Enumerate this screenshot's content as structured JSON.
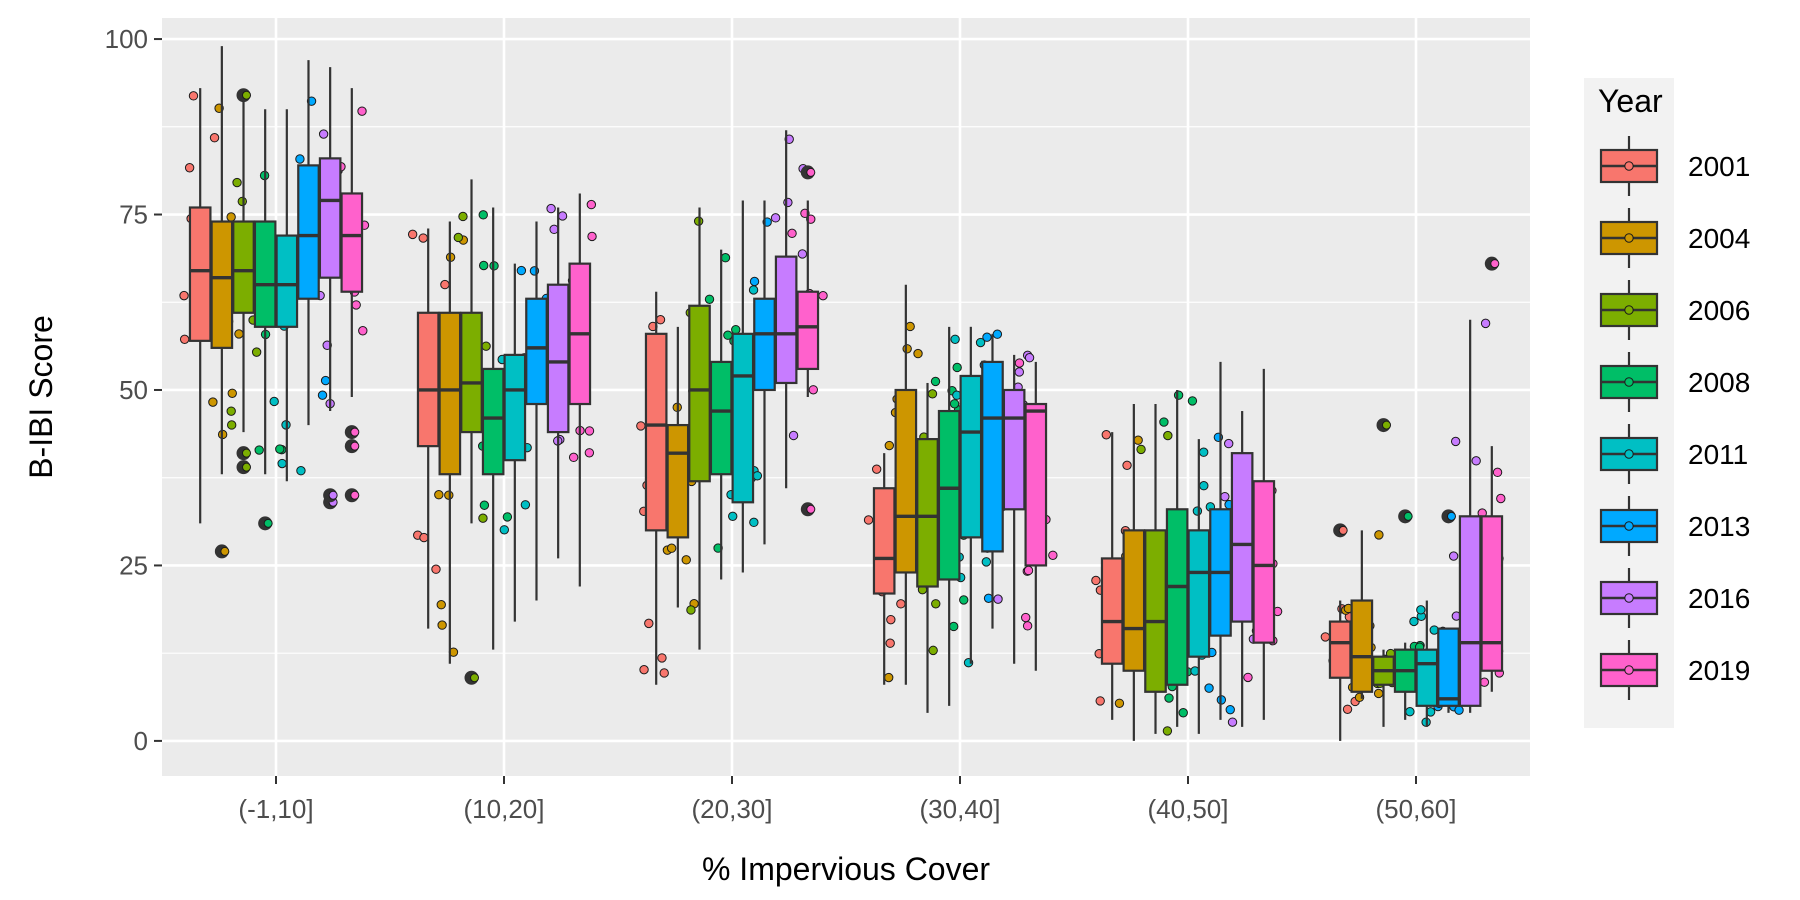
{
  "chart_data": {
    "type": "boxplot",
    "title": "",
    "xlabel": "% Impervious Cover",
    "ylabel": "B-IBI Score",
    "ylim": [
      -5,
      103
    ],
    "yticks": [
      0,
      25,
      50,
      75,
      100
    ],
    "grid": true,
    "legend": {
      "title": "Year",
      "position": "right"
    },
    "categories": [
      "(-1,10]",
      "(10,20]",
      "(20,30]",
      "(30,40]",
      "(40,50]",
      "(50,60]"
    ],
    "colors": {
      "2001": "#F8766D",
      "2004": "#CD9600",
      "2006": "#7CAE00",
      "2008": "#00BE67",
      "2011": "#00BFC4",
      "2013": "#00A9FF",
      "2016": "#C77CFF",
      "2019": "#FF61CC"
    },
    "series": [
      {
        "name": "2001",
        "boxes": [
          {
            "lo": 31,
            "q1": 57,
            "med": 67,
            "q3": 76,
            "hi": 93
          },
          {
            "lo": 16,
            "q1": 42,
            "med": 50,
            "q3": 61,
            "hi": 73
          },
          {
            "lo": 8,
            "q1": 30,
            "med": 45,
            "q3": 58,
            "hi": 64
          },
          {
            "lo": 8,
            "q1": 21,
            "med": 26,
            "q3": 36,
            "hi": 41
          },
          {
            "lo": 3,
            "q1": 11,
            "med": 17,
            "q3": 26,
            "hi": 44
          },
          {
            "lo": 0,
            "q1": 9,
            "med": 14,
            "q3": 17,
            "hi": 20
          }
        ]
      },
      {
        "name": "2004",
        "boxes": [
          {
            "lo": 38,
            "q1": 56,
            "med": 66,
            "q3": 74,
            "hi": 99
          },
          {
            "lo": 11,
            "q1": 38,
            "med": 50,
            "q3": 61,
            "hi": 74
          },
          {
            "lo": 19,
            "q1": 29,
            "med": 41,
            "q3": 45,
            "hi": 59
          },
          {
            "lo": 8,
            "q1": 24,
            "med": 32,
            "q3": 50,
            "hi": 65
          },
          {
            "lo": 0,
            "q1": 10,
            "med": 16,
            "q3": 30,
            "hi": 48
          },
          {
            "lo": 6,
            "q1": 7,
            "med": 12,
            "q3": 20,
            "hi": 30
          }
        ]
      },
      {
        "name": "2006",
        "boxes": [
          {
            "lo": 44,
            "q1": 61,
            "med": 67,
            "q3": 74,
            "hi": 92
          },
          {
            "lo": 31,
            "q1": 44,
            "med": 51,
            "q3": 61,
            "hi": 80
          },
          {
            "lo": 13,
            "q1": 37,
            "med": 50,
            "q3": 62,
            "hi": 76
          },
          {
            "lo": 4,
            "q1": 22,
            "med": 32,
            "q3": 43,
            "hi": 51
          },
          {
            "lo": 1,
            "q1": 7,
            "med": 17,
            "q3": 30,
            "hi": 48
          },
          {
            "lo": 2,
            "q1": 8,
            "med": 10,
            "q3": 12,
            "hi": 13
          }
        ]
      },
      {
        "name": "2008",
        "boxes": [
          {
            "lo": 38,
            "q1": 59,
            "med": 65,
            "q3": 74,
            "hi": 90
          },
          {
            "lo": 13,
            "q1": 38,
            "med": 46,
            "q3": 53,
            "hi": 76
          },
          {
            "lo": 23,
            "q1": 38,
            "med": 47,
            "q3": 54,
            "hi": 70
          },
          {
            "lo": 5,
            "q1": 23,
            "med": 36,
            "q3": 47,
            "hi": 59
          },
          {
            "lo": 2,
            "q1": 8,
            "med": 22,
            "q3": 33,
            "hi": 50
          },
          {
            "lo": 3,
            "q1": 7,
            "med": 10,
            "q3": 13,
            "hi": 14
          }
        ]
      },
      {
        "name": "2011",
        "boxes": [
          {
            "lo": 37,
            "q1": 59,
            "med": 65,
            "q3": 72,
            "hi": 90
          },
          {
            "lo": 17,
            "q1": 40,
            "med": 50,
            "q3": 55,
            "hi": 68
          },
          {
            "lo": 24,
            "q1": 34,
            "med": 52,
            "q3": 58,
            "hi": 77
          },
          {
            "lo": 11,
            "q1": 29,
            "med": 44,
            "q3": 52,
            "hi": 59
          },
          {
            "lo": 1,
            "q1": 12,
            "med": 24,
            "q3": 30,
            "hi": 43
          },
          {
            "lo": 2,
            "q1": 5,
            "med": 11,
            "q3": 13,
            "hi": 20
          }
        ]
      },
      {
        "name": "2013",
        "boxes": [
          {
            "lo": 45,
            "q1": 63,
            "med": 72,
            "q3": 82,
            "hi": 97
          },
          {
            "lo": 20,
            "q1": 48,
            "med": 56,
            "q3": 63,
            "hi": 74
          },
          {
            "lo": 28,
            "q1": 50,
            "med": 58,
            "q3": 63,
            "hi": 77
          },
          {
            "lo": 16,
            "q1": 27,
            "med": 46,
            "q3": 54,
            "hi": 58
          },
          {
            "lo": 3,
            "q1": 15,
            "med": 24,
            "q3": 33,
            "hi": 54
          },
          {
            "lo": 4,
            "q1": 5,
            "med": 6,
            "q3": 16,
            "hi": 16
          }
        ]
      },
      {
        "name": "2016",
        "boxes": [
          {
            "lo": 47,
            "q1": 66,
            "med": 77,
            "q3": 83,
            "hi": 96
          },
          {
            "lo": 26,
            "q1": 44,
            "med": 54,
            "q3": 65,
            "hi": 76
          },
          {
            "lo": 36,
            "q1": 51,
            "med": 58,
            "q3": 69,
            "hi": 87
          },
          {
            "lo": 11,
            "q1": 33,
            "med": 46,
            "q3": 50,
            "hi": 55
          },
          {
            "lo": 2,
            "q1": 17,
            "med": 28,
            "q3": 41,
            "hi": 47
          },
          {
            "lo": 4,
            "q1": 5,
            "med": 14,
            "q3": 32,
            "hi": 60
          }
        ]
      },
      {
        "name": "2019",
        "boxes": [
          {
            "lo": 49,
            "q1": 64,
            "med": 72,
            "q3": 78,
            "hi": 93
          },
          {
            "lo": 22,
            "q1": 48,
            "med": 58,
            "q3": 68,
            "hi": 78
          },
          {
            "lo": 49,
            "q1": 53,
            "med": 59,
            "q3": 64,
            "hi": 77
          },
          {
            "lo": 10,
            "q1": 25,
            "med": 47,
            "q3": 48,
            "hi": 54
          },
          {
            "lo": 3,
            "q1": 14,
            "med": 25,
            "q3": 37,
            "hi": 53
          },
          {
            "lo": 7,
            "q1": 10,
            "med": 14,
            "q3": 32,
            "hi": 42
          }
        ]
      }
    ],
    "outliers": [
      {
        "category": "(-1,10]",
        "year": "2004",
        "y": 27
      },
      {
        "category": "(-1,10]",
        "year": "2006",
        "y": 92
      },
      {
        "category": "(-1,10]",
        "year": "2006",
        "y": 41
      },
      {
        "category": "(-1,10]",
        "year": "2006",
        "y": 39
      },
      {
        "category": "(-1,10]",
        "year": "2008",
        "y": 31
      },
      {
        "category": "(-1,10]",
        "year": "2016",
        "y": 34
      },
      {
        "category": "(-1,10]",
        "year": "2016",
        "y": 35
      },
      {
        "category": "(-1,10]",
        "year": "2019",
        "y": 44
      },
      {
        "category": "(-1,10]",
        "year": "2019",
        "y": 42
      },
      {
        "category": "(-1,10]",
        "year": "2019",
        "y": 35
      },
      {
        "category": "(10,20]",
        "year": "2006",
        "y": 9
      },
      {
        "category": "(20,30]",
        "year": "2019",
        "y": 81
      },
      {
        "category": "(20,30]",
        "year": "2019",
        "y": 33
      },
      {
        "category": "(50,60]",
        "year": "2001",
        "y": 30
      },
      {
        "category": "(50,60]",
        "year": "2006",
        "y": 45
      },
      {
        "category": "(50,60]",
        "year": "2008",
        "y": 32
      },
      {
        "category": "(50,60]",
        "year": "2013",
        "y": 32
      },
      {
        "category": "(50,60]",
        "year": "2019",
        "y": 68
      }
    ]
  }
}
